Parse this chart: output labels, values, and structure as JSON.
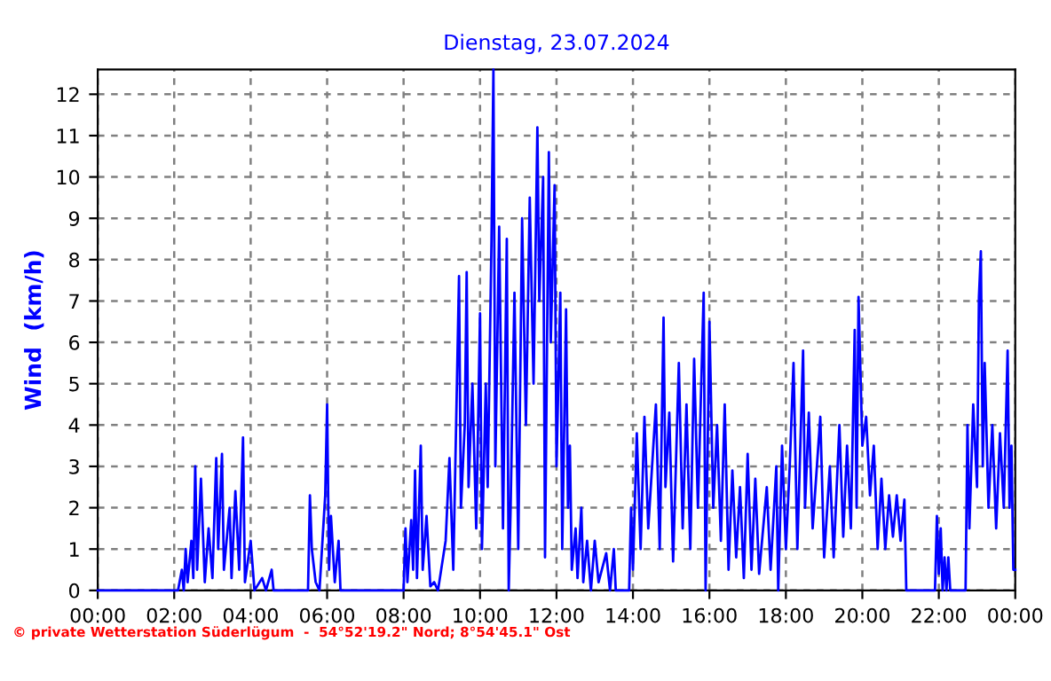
{
  "chart_data": {
    "type": "line",
    "title": "Dienstag, 23.07.2024",
    "ylabel": "Wind  (km/h)",
    "annotations": [
      "© private Wetterstation Süderlügum  -  54°52'19.2\" Nord; 8°54'45.1\" Ost"
    ],
    "series": [
      {
        "color": "#0000ff",
        "x": [
          0,
          2.1,
          2.2,
          2.25,
          2.3,
          2.35,
          2.45,
          2.5,
          2.55,
          2.6,
          2.7,
          2.8,
          2.9,
          3.0,
          3.1,
          3.15,
          3.25,
          3.3,
          3.45,
          3.5,
          3.6,
          3.7,
          3.8,
          3.85,
          4.0,
          4.1,
          4.3,
          4.4,
          4.55,
          4.6,
          5.5,
          5.55,
          5.6,
          5.7,
          5.8,
          5.95,
          6.0,
          6.05,
          6.1,
          6.2,
          6.3,
          6.35,
          8.0,
          8.05,
          8.1,
          8.2,
          8.25,
          8.3,
          8.35,
          8.45,
          8.5,
          8.6,
          8.7,
          8.8,
          8.9,
          9.1,
          9.2,
          9.3,
          9.45,
          9.5,
          9.6,
          9.65,
          9.7,
          9.8,
          9.9,
          10.0,
          10.05,
          10.15,
          10.2,
          10.3,
          10.35,
          10.4,
          10.5,
          10.6,
          10.7,
          10.75,
          10.8,
          10.9,
          11.0,
          11.1,
          11.2,
          11.3,
          11.4,
          11.5,
          11.55,
          11.65,
          11.7,
          11.8,
          11.85,
          11.95,
          12.0,
          12.1,
          12.15,
          12.25,
          12.3,
          12.35,
          12.4,
          12.5,
          12.55,
          12.65,
          12.7,
          12.8,
          12.9,
          13.0,
          13.1,
          13.3,
          13.4,
          13.5,
          13.55,
          13.9,
          13.95,
          14.0,
          14.1,
          14.2,
          14.3,
          14.4,
          14.6,
          14.7,
          14.8,
          14.85,
          14.95,
          15.05,
          15.2,
          15.3,
          15.4,
          15.5,
          15.6,
          15.7,
          15.85,
          15.9,
          16.0,
          16.1,
          16.2,
          16.3,
          16.4,
          16.5,
          16.6,
          16.7,
          16.8,
          16.9,
          17.0,
          17.1,
          17.2,
          17.3,
          17.5,
          17.6,
          17.75,
          17.8,
          17.9,
          18.0,
          18.1,
          18.2,
          18.3,
          18.45,
          18.5,
          18.6,
          18.7,
          18.9,
          19.0,
          19.15,
          19.25,
          19.4,
          19.5,
          19.6,
          19.7,
          19.8,
          19.85,
          19.9,
          20.0,
          20.1,
          20.2,
          20.3,
          20.4,
          20.5,
          20.6,
          20.7,
          20.8,
          20.9,
          21.0,
          21.1,
          21.15,
          21.9,
          21.95,
          22.0,
          22.05,
          22.1,
          22.15,
          22.2,
          22.25,
          22.3,
          22.7,
          22.75,
          22.8,
          22.9,
          23.0,
          23.05,
          23.1,
          23.15,
          23.2,
          23.3,
          23.4,
          23.5,
          23.6,
          23.7,
          23.8,
          23.85,
          23.9,
          23.95,
          24
        ],
        "values": [
          0,
          0,
          0.5,
          0,
          1.0,
          0.2,
          1.2,
          0.3,
          3.0,
          0.5,
          2.7,
          0.2,
          1.5,
          0.3,
          3.2,
          1.0,
          3.3,
          0.5,
          2.0,
          0.3,
          2.4,
          0.5,
          3.7,
          0.2,
          1.2,
          0,
          0.3,
          0,
          0.5,
          0,
          0,
          2.3,
          1.0,
          0.2,
          0,
          2.3,
          4.5,
          0.5,
          1.8,
          0.2,
          1.2,
          0,
          0,
          1.5,
          0.2,
          1.7,
          0.5,
          2.9,
          0.3,
          3.5,
          0.5,
          1.8,
          0.1,
          0.2,
          0,
          1.2,
          3.2,
          0.5,
          7.6,
          2.0,
          4.0,
          7.7,
          2.5,
          5.0,
          1.5,
          6.7,
          1.0,
          5.0,
          2.5,
          8.5,
          12.6,
          3.0,
          8.8,
          1.5,
          8.5,
          0,
          2.0,
          7.2,
          1.0,
          9.0,
          4.0,
          9.5,
          5.0,
          11.2,
          7.0,
          10.0,
          0.8,
          10.6,
          6.0,
          9.8,
          3.0,
          7.2,
          1.0,
          6.8,
          2.0,
          3.5,
          0.5,
          1.5,
          0.3,
          2.0,
          0.2,
          1.2,
          0,
          1.2,
          0.2,
          0.9,
          0,
          1.0,
          0,
          0,
          2.0,
          0.5,
          3.8,
          1.0,
          4.2,
          1.5,
          4.5,
          1.0,
          6.6,
          2.5,
          4.3,
          0.7,
          5.5,
          1.5,
          4.5,
          1.0,
          5.6,
          2.0,
          7.2,
          0,
          6.5,
          2.0,
          4.0,
          1.2,
          4.5,
          0.5,
          2.9,
          0.8,
          2.5,
          0.3,
          3.3,
          0.5,
          2.7,
          0.4,
          2.5,
          0.5,
          3.0,
          0,
          3.5,
          1.0,
          3.0,
          5.5,
          1.0,
          5.8,
          2.0,
          4.3,
          1.5,
          4.2,
          0.8,
          3.0,
          0.8,
          4.0,
          1.3,
          3.5,
          1.5,
          6.3,
          2.0,
          7.1,
          3.5,
          4.2,
          2.3,
          3.5,
          1.0,
          2.7,
          1.0,
          2.3,
          1.3,
          2.3,
          1.2,
          2.2,
          0,
          0,
          1.8,
          0.4,
          1.5,
          0,
          0.8,
          0,
          0.8,
          0,
          0,
          4.0,
          1.5,
          4.5,
          2.5,
          7.1,
          8.2,
          3.0,
          5.5,
          2.0,
          4.0,
          1.5,
          3.8,
          2.0,
          5.8,
          2.0,
          3.5,
          0.5,
          0.5
        ]
      }
    ],
    "xlim": [
      0,
      24
    ],
    "ylim": [
      0,
      12.6
    ],
    "xticks": [
      {
        "value": 0,
        "label": "00:00"
      },
      {
        "value": 2,
        "label": "02:00"
      },
      {
        "value": 4,
        "label": "04:00"
      },
      {
        "value": 6,
        "label": "06:00"
      },
      {
        "value": 8,
        "label": "08:00"
      },
      {
        "value": 10,
        "label": "10:00"
      },
      {
        "value": 12,
        "label": "12:00"
      },
      {
        "value": 14,
        "label": "14:00"
      },
      {
        "value": 16,
        "label": "16:00"
      },
      {
        "value": 18,
        "label": "18:00"
      },
      {
        "value": 20,
        "label": "20:00"
      },
      {
        "value": 22,
        "label": "22:00"
      },
      {
        "value": 24,
        "label": "00:00"
      }
    ],
    "yticks": [
      0,
      1,
      2,
      3,
      4,
      5,
      6,
      7,
      8,
      9,
      10,
      11,
      12
    ],
    "grid": true,
    "line_style": "solid",
    "marker": "none",
    "legend": false
  }
}
